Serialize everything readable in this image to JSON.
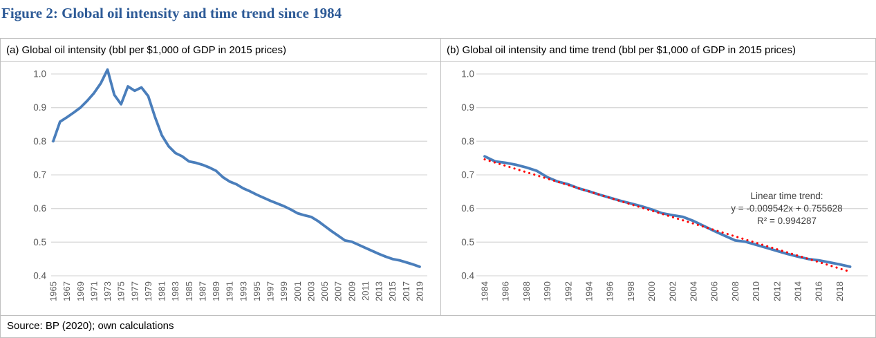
{
  "title": "Figure 2: Global oil intensity and time trend since 1984",
  "source": "Source: BP (2020); own calculations",
  "colors": {
    "title_text": "#2E5B97",
    "intensity_line": "#4A7EBB",
    "trend_line": "#FF0000",
    "gridline": "#D9D9D9",
    "tick_text": "#595959",
    "border": "#BFBFBF",
    "annotation_text": "#404040"
  },
  "chart_data": [
    {
      "type": "line",
      "panel": "a",
      "title": "(a) Global oil intensity (bbl per $1,000 of GDP in 2015 prices)",
      "xlabel": "",
      "ylabel": "",
      "ylim": [
        0.4,
        1.0
      ],
      "yticks": [
        1.0,
        0.9,
        0.8,
        0.7,
        0.6,
        0.5,
        0.4
      ],
      "xticks": [
        1965,
        1967,
        1969,
        1971,
        1973,
        1975,
        1977,
        1979,
        1981,
        1983,
        1985,
        1987,
        1989,
        1991,
        1993,
        1995,
        1997,
        1999,
        2001,
        2003,
        2005,
        2007,
        2009,
        2011,
        2013,
        2015,
        2017,
        2019
      ],
      "grid": true,
      "legend": "none",
      "x": [
        1965,
        1966,
        1967,
        1968,
        1969,
        1970,
        1971,
        1972,
        1973,
        1974,
        1975,
        1976,
        1977,
        1978,
        1979,
        1980,
        1981,
        1982,
        1983,
        1984,
        1985,
        1986,
        1987,
        1988,
        1989,
        1990,
        1991,
        1992,
        1993,
        1994,
        1995,
        1996,
        1997,
        1998,
        1999,
        2000,
        2001,
        2002,
        2003,
        2004,
        2005,
        2006,
        2007,
        2008,
        2009,
        2010,
        2011,
        2012,
        2013,
        2014,
        2015,
        2016,
        2017,
        2018,
        2019
      ],
      "series": [
        {
          "name": "Global oil intensity",
          "style": "solid",
          "values": [
            0.8,
            0.858,
            0.871,
            0.885,
            0.9,
            0.92,
            0.943,
            0.972,
            1.013,
            0.938,
            0.91,
            0.963,
            0.95,
            0.96,
            0.934,
            0.872,
            0.818,
            0.785,
            0.765,
            0.755,
            0.74,
            0.736,
            0.73,
            0.722,
            0.712,
            0.693,
            0.68,
            0.672,
            0.66,
            0.651,
            0.641,
            0.632,
            0.623,
            0.615,
            0.607,
            0.597,
            0.586,
            0.58,
            0.575,
            0.563,
            0.548,
            0.533,
            0.519,
            0.505,
            0.501,
            0.492,
            0.483,
            0.474,
            0.465,
            0.457,
            0.45,
            0.446,
            0.44,
            0.434,
            0.427
          ]
        }
      ]
    },
    {
      "type": "line",
      "panel": "b",
      "title": "(b) Global oil intensity and time trend (bbl per $1,000 of GDP in 2015 prices)",
      "xlabel": "",
      "ylabel": "",
      "ylim": [
        0.4,
        1.0
      ],
      "yticks": [
        1.0,
        0.9,
        0.8,
        0.7,
        0.6,
        0.5,
        0.4
      ],
      "xticks": [
        1984,
        1986,
        1988,
        1990,
        1992,
        1994,
        1996,
        1998,
        2000,
        2002,
        2004,
        2006,
        2008,
        2010,
        2012,
        2014,
        2016,
        2018
      ],
      "grid": true,
      "legend": "none",
      "x": [
        1984,
        1985,
        1986,
        1987,
        1988,
        1989,
        1990,
        1991,
        1992,
        1993,
        1994,
        1995,
        1996,
        1997,
        1998,
        1999,
        2000,
        2001,
        2002,
        2003,
        2004,
        2005,
        2006,
        2007,
        2008,
        2009,
        2010,
        2011,
        2012,
        2013,
        2014,
        2015,
        2016,
        2017,
        2018,
        2019
      ],
      "series": [
        {
          "name": "Global oil intensity",
          "style": "solid",
          "values": [
            0.755,
            0.74,
            0.736,
            0.73,
            0.722,
            0.712,
            0.693,
            0.68,
            0.672,
            0.66,
            0.651,
            0.641,
            0.632,
            0.623,
            0.615,
            0.607,
            0.597,
            0.586,
            0.58,
            0.575,
            0.563,
            0.548,
            0.533,
            0.519,
            0.505,
            0.501,
            0.492,
            0.483,
            0.474,
            0.465,
            0.457,
            0.45,
            0.446,
            0.44,
            0.434,
            0.427
          ]
        },
        {
          "name": "Linear time trend",
          "style": "dotted-trend",
          "trend": {
            "slope": -0.009542,
            "intercept": 0.755628,
            "r_squared": 0.994287,
            "x_equals_1_year": 1984
          }
        }
      ],
      "annotation": {
        "lines": [
          "Linear time trend:",
          "y = -0.009542x + 0.755628",
          "R² = 0.994287"
        ]
      }
    }
  ]
}
